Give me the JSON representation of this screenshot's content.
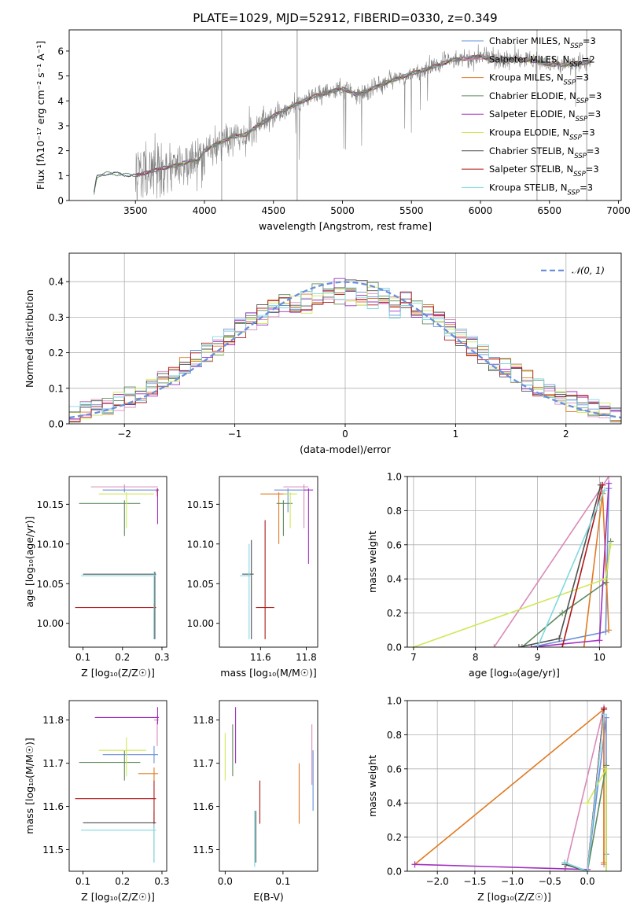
{
  "figure": {
    "title": "PLATE=1029, MJD=52912, FIBERID=0330, z=0.349"
  },
  "colors": {
    "Chabrier MILES": "#6a8fdc",
    "Salpeter MILES": "#d98ab8",
    "Kroupa MILES": "#e07a22",
    "Chabrier ELODIE": "#5e8a5e",
    "Salpeter ELODIE": "#a030c0",
    "Kroupa ELODIE": "#cfe85a",
    "Chabrier STELIB": "#505050",
    "Salpeter STELIB": "#b01818",
    "Kroupa STELIB": "#80d8e0",
    "data": "#808080",
    "normal": "#6a8fdc"
  },
  "legend_spectrum": [
    {
      "model": "Chabrier MILES",
      "label": "Chabrier MILES, N",
      "sub": "SSP",
      "tail": "=3"
    },
    {
      "model": "Salpeter MILES",
      "label": "Salpeter MILES, N",
      "sub": "SSP",
      "tail": "=2"
    },
    {
      "model": "Kroupa MILES",
      "label": "Kroupa MILES, N",
      "sub": "SSP",
      "tail": "=3"
    },
    {
      "model": "Chabrier ELODIE",
      "label": "Chabrier ELODIE, N",
      "sub": "SSP",
      "tail": "=3"
    },
    {
      "model": "Salpeter ELODIE",
      "label": "Salpeter ELODIE, N",
      "sub": "SSP",
      "tail": "=3"
    },
    {
      "model": "Kroupa ELODIE",
      "label": "Kroupa ELODIE, N",
      "sub": "SSP",
      "tail": "=3"
    },
    {
      "model": "Chabrier STELIB",
      "label": "Chabrier STELIB, N",
      "sub": "SSP",
      "tail": "=3"
    },
    {
      "model": "Salpeter STELIB",
      "label": "Salpeter STELIB, N",
      "sub": "SSP",
      "tail": "=3"
    },
    {
      "model": "Kroupa STELIB",
      "label": "Kroupa STELIB, N",
      "sub": "SSP",
      "tail": "=3"
    }
  ],
  "legend_hist": {
    "label": "𝒩(0, 1)"
  },
  "chart_data": [
    {
      "id": "spectrum",
      "type": "line",
      "xlabel": "wavelength [Angstrom, rest frame]",
      "ylabel": "Flux [fλ10⁻¹⁷ erg cm⁻² s⁻¹ A⁻¹]",
      "xlim": [
        3020,
        7020
      ],
      "ylim": [
        0,
        6.85
      ],
      "xticks": [
        3500,
        4000,
        4500,
        5000,
        5500,
        6000,
        6500,
        7000
      ],
      "yticks": [
        0,
        1,
        2,
        3,
        4,
        5,
        6
      ],
      "grid": false,
      "legend": "upper-right",
      "continuum": [
        [
          3200,
          0.3
        ],
        [
          3220,
          0.95
        ],
        [
          3300,
          1.1
        ],
        [
          3400,
          1.05
        ],
        [
          3500,
          1.0
        ],
        [
          3600,
          1.15
        ],
        [
          3700,
          1.3
        ],
        [
          3800,
          1.4
        ],
        [
          3900,
          1.6
        ],
        [
          3950,
          1.55
        ],
        [
          4000,
          2.0
        ],
        [
          4100,
          2.3
        ],
        [
          4200,
          2.55
        ],
        [
          4300,
          2.65
        ],
        [
          4400,
          3.05
        ],
        [
          4500,
          3.4
        ],
        [
          4600,
          3.7
        ],
        [
          4700,
          3.95
        ],
        [
          4800,
          4.2
        ],
        [
          4900,
          4.35
        ],
        [
          5000,
          4.5
        ],
        [
          5100,
          4.25
        ],
        [
          5200,
          4.45
        ],
        [
          5300,
          4.7
        ],
        [
          5400,
          4.9
        ],
        [
          5500,
          5.1
        ],
        [
          5600,
          5.25
        ],
        [
          5700,
          5.45
        ],
        [
          5800,
          5.65
        ],
        [
          5900,
          5.7
        ],
        [
          6000,
          5.8
        ],
        [
          6100,
          5.65
        ],
        [
          6200,
          5.7
        ],
        [
          6300,
          5.65
        ],
        [
          6400,
          5.6
        ],
        [
          6500,
          5.45
        ],
        [
          6600,
          5.45
        ],
        [
          6700,
          5.5
        ],
        [
          6800,
          5.55
        ]
      ],
      "data_range": [
        3500,
        6800
      ]
    },
    {
      "id": "residuals",
      "type": "bar",
      "xlabel": "(data-model)/error",
      "ylabel": "Normed distribution",
      "xlim": [
        -2.5,
        2.5
      ],
      "ylim": [
        0,
        0.48
      ],
      "xticks": [
        -2,
        -1,
        0,
        1,
        2
      ],
      "yticks": [
        0.0,
        0.1,
        0.2,
        0.3,
        0.4
      ],
      "grid": true,
      "legend": "upper-right",
      "bin_width": 0.1,
      "reference": "N(0,1)"
    },
    {
      "id": "age_vs_Z",
      "type": "scatter",
      "xlabel": "Z [log₁₀(Z/Z☉)]",
      "ylabel": "age  [log₁₀(age/yr)]",
      "xlim": [
        0.065,
        0.312
      ],
      "ylim": [
        9.97,
        10.185
      ],
      "xticks": [
        0.1,
        0.2,
        0.3
      ],
      "yticks": [
        10.0,
        10.05,
        10.1,
        10.15
      ],
      "points": [
        {
          "model": "Chabrier MILES",
          "x": 0.205,
          "y": 10.168,
          "xlo": 0.15,
          "xhi": 0.29,
          "ylo": 10.165,
          "yhi": 10.17
        },
        {
          "model": "Salpeter MILES",
          "x": 0.205,
          "y": 10.172,
          "xlo": 0.12,
          "xhi": 0.29,
          "ylo": 10.17,
          "yhi": 10.175
        },
        {
          "model": "Kroupa MILES",
          "x": 0.288,
          "y": 10.166,
          "xlo": 0.285,
          "xhi": 0.29,
          "ylo": 10.16,
          "yhi": 10.17
        },
        {
          "model": "Chabrier ELODIE",
          "x": 0.205,
          "y": 10.151,
          "xlo": 0.09,
          "xhi": 0.245,
          "ylo": 10.11,
          "yhi": 10.155
        },
        {
          "model": "Salpeter ELODIE",
          "x": 0.289,
          "y": 10.168,
          "xlo": 0.285,
          "xhi": 0.292,
          "ylo": 10.125,
          "yhi": 10.17
        },
        {
          "model": "Kroupa ELODIE",
          "x": 0.21,
          "y": 10.163,
          "xlo": 0.14,
          "xhi": 0.28,
          "ylo": 10.12,
          "yhi": 10.165
        },
        {
          "model": "Chabrier STELIB",
          "x": 0.282,
          "y": 10.062,
          "xlo": 0.1,
          "xhi": 0.285,
          "ylo": 9.98,
          "yhi": 10.065
        },
        {
          "model": "Salpeter STELIB",
          "x": 0.28,
          "y": 10.02,
          "xlo": 0.08,
          "xhi": 0.285,
          "ylo": 9.98,
          "yhi": 10.025
        },
        {
          "model": "Kroupa STELIB",
          "x": 0.28,
          "y": 10.06,
          "xlo": 0.095,
          "xhi": 0.285,
          "ylo": 9.98,
          "yhi": 10.065
        }
      ]
    },
    {
      "id": "age_vs_mass",
      "type": "scatter",
      "xlabel": "mass [log₁₀(M/M☉)]",
      "ylabel": "",
      "xlim": [
        11.42,
        11.85
      ],
      "ylim": [
        9.97,
        10.185
      ],
      "xticks": [
        11.6,
        11.8
      ],
      "yticks": [
        10.0,
        10.05,
        10.1,
        10.15
      ],
      "points": [
        {
          "model": "Chabrier MILES",
          "x": 11.72,
          "y": 10.168,
          "xlo": 11.66,
          "xhi": 11.8,
          "ylo": 10.14,
          "yhi": 10.17
        },
        {
          "model": "Salpeter MILES",
          "x": 11.79,
          "y": 10.172,
          "xlo": 11.7,
          "xhi": 11.81,
          "ylo": 10.12,
          "yhi": 10.175
        },
        {
          "model": "Kroupa MILES",
          "x": 11.68,
          "y": 10.163,
          "xlo": 11.6,
          "xhi": 11.72,
          "ylo": 10.1,
          "yhi": 10.165
        },
        {
          "model": "Chabrier ELODIE",
          "x": 11.7,
          "y": 10.151,
          "xlo": 11.67,
          "xhi": 11.74,
          "ylo": 10.11,
          "yhi": 10.155
        },
        {
          "model": "Salpeter ELODIE",
          "x": 11.81,
          "y": 10.168,
          "xlo": 11.79,
          "xhi": 11.83,
          "ylo": 10.075,
          "yhi": 10.17
        },
        {
          "model": "Kroupa ELODIE",
          "x": 11.73,
          "y": 10.163,
          "xlo": 11.7,
          "xhi": 11.76,
          "ylo": 10.12,
          "yhi": 10.165
        },
        {
          "model": "Chabrier STELIB",
          "x": 11.56,
          "y": 10.062,
          "xlo": 11.52,
          "xhi": 11.57,
          "ylo": 9.98,
          "yhi": 10.105
        },
        {
          "model": "Salpeter STELIB",
          "x": 11.62,
          "y": 10.02,
          "xlo": 11.58,
          "xhi": 11.66,
          "ylo": 9.98,
          "yhi": 10.13
        },
        {
          "model": "Kroupa STELIB",
          "x": 11.55,
          "y": 10.06,
          "xlo": 11.51,
          "xhi": 11.56,
          "ylo": 9.98,
          "yhi": 10.1
        }
      ]
    },
    {
      "id": "weight_vs_age",
      "type": "line",
      "xlabel": "age  [log₁₀(age/yr)]",
      "ylabel": "mass weight",
      "xlim": [
        6.9,
        10.35
      ],
      "ylim": [
        0,
        1
      ],
      "xticks": [
        7,
        8,
        9,
        10
      ],
      "yticks": [
        0.0,
        0.2,
        0.4,
        0.6,
        0.8,
        1.0
      ],
      "grid": true,
      "series": [
        {
          "model": "Chabrier MILES",
          "points": [
            [
              8.9,
              0.0
            ],
            [
              10.1,
              0.09
            ],
            [
              10.15,
              0.93
            ]
          ]
        },
        {
          "model": "Salpeter MILES",
          "points": [
            [
              8.3,
              0.0
            ],
            [
              10.15,
              1.0
            ]
          ]
        },
        {
          "model": "Kroupa MILES",
          "points": [
            [
              9.75,
              0.0
            ],
            [
              10.05,
              0.9
            ],
            [
              10.15,
              0.1
            ]
          ]
        },
        {
          "model": "Chabrier ELODIE",
          "points": [
            [
              8.75,
              0.0
            ],
            [
              9.4,
              0.2
            ],
            [
              10.1,
              0.38
            ],
            [
              10.18,
              0.62
            ]
          ]
        },
        {
          "model": "Salpeter ELODIE",
          "points": [
            [
              8.9,
              0.0
            ],
            [
              10.0,
              0.04
            ],
            [
              10.15,
              0.96
            ]
          ]
        },
        {
          "model": "Kroupa ELODIE",
          "points": [
            [
              7.0,
              0.0
            ],
            [
              10.1,
              0.4
            ],
            [
              10.18,
              0.6
            ]
          ]
        },
        {
          "model": "Chabrier STELIB",
          "points": [
            [
              8.7,
              0.0
            ],
            [
              9.35,
              0.05
            ],
            [
              10.02,
              0.95
            ]
          ]
        },
        {
          "model": "Salpeter STELIB",
          "points": [
            [
              9.4,
              0.0
            ],
            [
              10.05,
              0.95
            ]
          ]
        },
        {
          "model": "Kroupa STELIB",
          "points": [
            [
              9.0,
              0.0
            ],
            [
              10.08,
              0.92
            ]
          ]
        }
      ]
    },
    {
      "id": "mass_vs_Z",
      "type": "scatter",
      "xlabel": "Z [log₁₀(Z/Z☉)]",
      "ylabel": "mass [log₁₀(M/M☉)]",
      "xlim": [
        0.065,
        0.312
      ],
      "ylim": [
        11.45,
        11.845
      ],
      "xticks": [
        0.1,
        0.2,
        0.3
      ],
      "yticks": [
        11.5,
        11.6,
        11.7,
        11.8
      ],
      "points": [
        {
          "model": "Chabrier MILES",
          "x": 0.28,
          "y": 11.72,
          "xlo": 0.15,
          "xhi": 0.29,
          "ylo": 11.7,
          "yhi": 11.74
        },
        {
          "model": "Salpeter MILES",
          "x": 0.288,
          "y": 11.8,
          "xlo": 0.28,
          "xhi": 0.292,
          "ylo": 11.74,
          "yhi": 11.81
        },
        {
          "model": "Kroupa MILES",
          "x": 0.28,
          "y": 11.676,
          "xlo": 0.24,
          "xhi": 0.29,
          "ylo": 11.66,
          "yhi": 11.69
        },
        {
          "model": "Chabrier ELODIE",
          "x": 0.205,
          "y": 11.702,
          "xlo": 0.09,
          "xhi": 0.245,
          "ylo": 11.66,
          "yhi": 11.73
        },
        {
          "model": "Salpeter ELODIE",
          "x": 0.289,
          "y": 11.806,
          "xlo": 0.13,
          "xhi": 0.292,
          "ylo": 11.79,
          "yhi": 11.83
        },
        {
          "model": "Kroupa ELODIE",
          "x": 0.21,
          "y": 11.73,
          "xlo": 0.14,
          "xhi": 0.26,
          "ylo": 11.67,
          "yhi": 11.76
        },
        {
          "model": "Chabrier STELIB",
          "x": 0.28,
          "y": 11.562,
          "xlo": 0.1,
          "xhi": 0.285,
          "ylo": 11.47,
          "yhi": 11.59
        },
        {
          "model": "Salpeter STELIB",
          "x": 0.28,
          "y": 11.618,
          "xlo": 0.08,
          "xhi": 0.285,
          "ylo": 11.55,
          "yhi": 11.66
        },
        {
          "model": "Kroupa STELIB",
          "x": 0.28,
          "y": 11.545,
          "xlo": 0.095,
          "xhi": 0.285,
          "ylo": 11.47,
          "yhi": 11.56
        }
      ]
    },
    {
      "id": "mass_vs_EBV",
      "type": "scatter",
      "xlabel": "E(B-V)",
      "ylabel": "",
      "xlim": [
        -0.01,
        0.16
      ],
      "ylim": [
        11.45,
        11.845
      ],
      "xticks": [
        0.0,
        0.1
      ],
      "yticks": [
        11.5,
        11.6,
        11.7,
        11.8
      ],
      "points": [
        {
          "model": "Chabrier MILES",
          "x": 0.152,
          "y": 11.66,
          "ylo": 11.59,
          "yhi": 11.73
        },
        {
          "model": "Salpeter MILES",
          "x": 0.15,
          "y": 11.72,
          "ylo": 11.65,
          "yhi": 11.79
        },
        {
          "model": "Kroupa MILES",
          "x": 0.128,
          "y": 11.63,
          "ylo": 11.56,
          "yhi": 11.7
        },
        {
          "model": "Chabrier ELODIE",
          "x": 0.013,
          "y": 11.7,
          "ylo": 11.67,
          "yhi": 11.79
        },
        {
          "model": "Salpeter ELODIE",
          "x": 0.018,
          "y": 11.78,
          "ylo": 11.7,
          "yhi": 11.83
        },
        {
          "model": "Kroupa ELODIE",
          "x": 0.0,
          "y": 11.72,
          "ylo": 11.66,
          "yhi": 11.77
        },
        {
          "model": "Chabrier STELIB",
          "x": 0.053,
          "y": 11.53,
          "ylo": 11.47,
          "yhi": 11.59
        },
        {
          "model": "Salpeter STELIB",
          "x": 0.06,
          "y": 11.6,
          "ylo": 11.56,
          "yhi": 11.66
        },
        {
          "model": "Kroupa STELIB",
          "x": 0.051,
          "y": 11.52,
          "ylo": 11.46,
          "yhi": 11.59
        }
      ]
    },
    {
      "id": "weight_vs_Z",
      "type": "line",
      "xlabel": "Z [log₁₀(Z/Z☉)]",
      "ylabel": "mass weight",
      "xlim": [
        -2.4,
        0.45
      ],
      "ylim": [
        0,
        1
      ],
      "xticks": [
        -2.0,
        -1.5,
        -1.0,
        -0.5,
        0.0
      ],
      "yticks": [
        0.0,
        0.2,
        0.4,
        0.6,
        0.8,
        1.0
      ],
      "grid": true,
      "series": [
        {
          "model": "Chabrier MILES",
          "points": [
            [
              -0.3,
              0.05
            ],
            [
              0.0,
              0.0
            ],
            [
              0.25,
              0.9
            ],
            [
              0.25,
              0.1
            ]
          ]
        },
        {
          "model": "Salpeter MILES",
          "points": [
            [
              -0.3,
              0.0
            ],
            [
              0.22,
              0.96
            ],
            [
              0.22,
              0.04
            ]
          ]
        },
        {
          "model": "Kroupa MILES",
          "points": [
            [
              -2.3,
              0.04
            ],
            [
              0.22,
              0.95
            ],
            [
              0.22,
              0.05
            ]
          ]
        },
        {
          "model": "Chabrier ELODIE",
          "points": [
            [
              -0.3,
              0.05
            ],
            [
              0.0,
              0.0
            ],
            [
              0.25,
              0.62
            ],
            [
              0.25,
              0.0
            ]
          ]
        },
        {
          "model": "Salpeter ELODIE",
          "points": [
            [
              -2.3,
              0.04
            ],
            [
              0.0,
              0.01
            ],
            [
              0.22,
              0.95
            ]
          ]
        },
        {
          "model": "Kroupa ELODIE",
          "points": [
            [
              0.0,
              0.4
            ],
            [
              0.25,
              0.6
            ],
            [
              0.25,
              0.0
            ]
          ]
        },
        {
          "model": "Chabrier STELIB",
          "points": [
            [
              -0.3,
              0.04
            ],
            [
              0.0,
              0.0
            ],
            [
              0.22,
              0.95
            ]
          ]
        },
        {
          "model": "Salpeter STELIB",
          "points": [
            [
              0.0,
              0.0
            ],
            [
              0.22,
              0.95
            ]
          ]
        },
        {
          "model": "Kroupa STELIB",
          "points": [
            [
              -0.3,
              0.05
            ],
            [
              0.0,
              0.0
            ],
            [
              0.22,
              0.92
            ]
          ]
        }
      ]
    }
  ]
}
